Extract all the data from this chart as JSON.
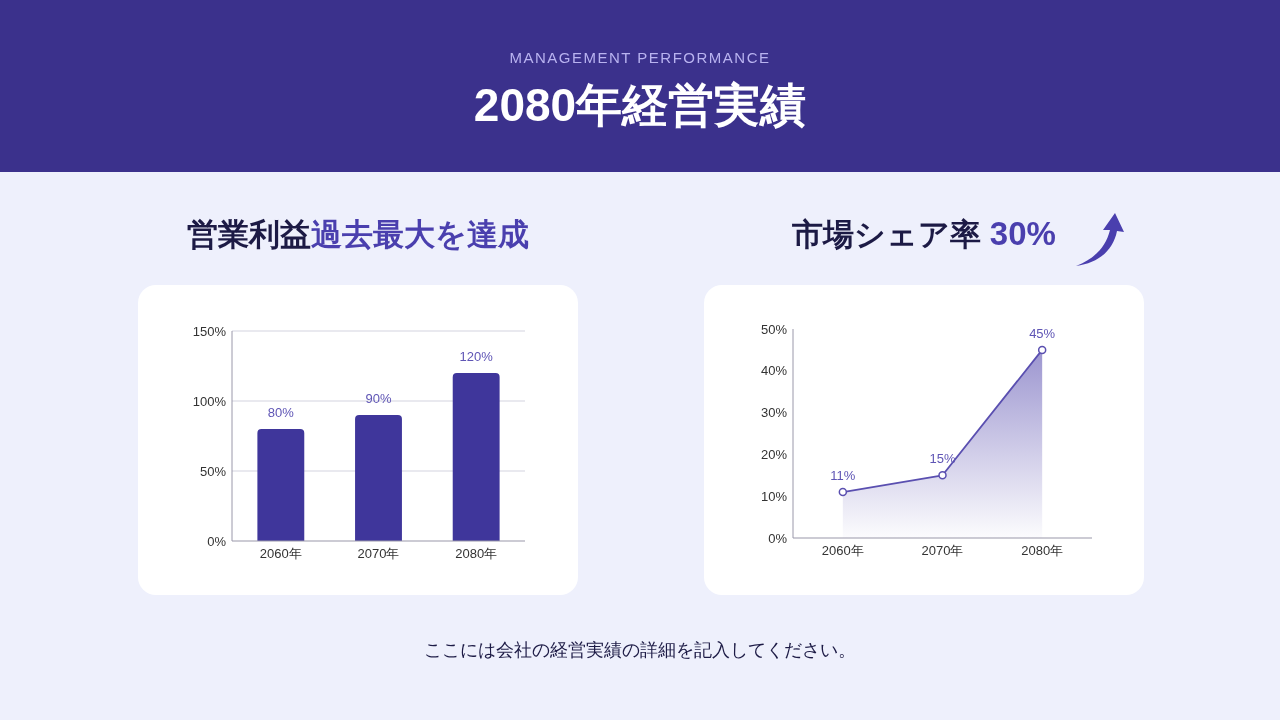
{
  "chart_data": [
    {
      "type": "bar",
      "title": "営業利益過去最大を達成",
      "annotations": [
        "MANAGEMENT PERFORMANCE",
        "2080年経営実績",
        "ここには会社の経営実績の詳細を記入してください。"
      ],
      "categories": [
        "2060年",
        "2070年",
        "2080年"
      ],
      "values": [
        80,
        90,
        120
      ],
      "value_labels": [
        "80%",
        "90%",
        "120%"
      ],
      "color": "#3f369b",
      "ylim": [
        0,
        150
      ],
      "yticks": [
        {
          "value": 0,
          "label": "0%"
        },
        {
          "value": 50,
          "label": "50%"
        },
        {
          "value": 100,
          "label": "100%"
        },
        {
          "value": 150,
          "label": "150%"
        }
      ],
      "grid": "y"
    },
    {
      "type": "area",
      "title": "市場シェア率 30%",
      "categories": [
        "2060年",
        "2070年",
        "2080年"
      ],
      "values": [
        11,
        15,
        45
      ],
      "value_labels": [
        "11%",
        "15%",
        "45%"
      ],
      "color": "#5a4fb0",
      "ylim": [
        0,
        50
      ],
      "yticks": [
        {
          "value": 0,
          "label": "0%"
        },
        {
          "value": 10,
          "label": "10%"
        },
        {
          "value": 20,
          "label": "20%"
        },
        {
          "value": 30,
          "label": "30%"
        },
        {
          "value": 40,
          "label": "40%"
        },
        {
          "value": 50,
          "label": "50%"
        }
      ],
      "marker": "circle"
    }
  ]
}
